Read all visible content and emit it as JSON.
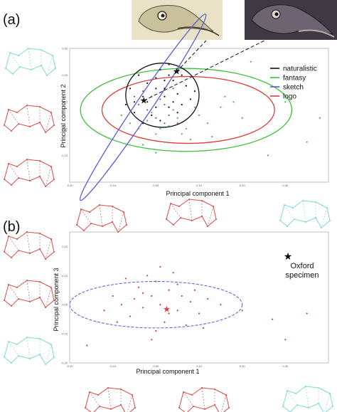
{
  "panels": {
    "a_label": "(a)",
    "b_label": "(b)"
  },
  "colors": {
    "naturalistic": "#111111",
    "fantasy": "#3cbf3c",
    "sketch": "#5a5ad6",
    "logo": "#e03a3a",
    "cyan_outline": "#7fd9cf",
    "red_outline": "#d94a4a",
    "star_b": "#e03a3a"
  },
  "icons": [
    "dodo-engraving-image",
    "dodo-painting-image",
    "skull-outline-shape"
  ],
  "chart_data": [
    {
      "type": "scatter",
      "title": "",
      "xlabel": "Principal component 1",
      "ylabel": "Principal component 2",
      "xlim": [
        -0.2,
        0.4
      ],
      "ylim": [
        -0.2,
        0.3
      ],
      "x_ticks": [
        "-0.20",
        "-0.10",
        "0.00",
        "0.10",
        "0.20",
        "0.30"
      ],
      "y_ticks": [
        "0.30",
        "0.20",
        "0.10",
        "0.00",
        "-0.10"
      ],
      "legend_position": "top-right",
      "legend": [
        "naturalistic",
        "fantasy",
        "sketch",
        "logo"
      ],
      "series": [
        {
          "name": "naturalistic",
          "marker": "dot",
          "points": [
            [
              -0.05,
              0.1
            ],
            [
              -0.03,
              0.12
            ],
            [
              0.0,
              0.15
            ],
            [
              0.02,
              0.18
            ],
            [
              0.03,
              0.08
            ],
            [
              -0.01,
              0.05
            ],
            [
              0.05,
              0.13
            ],
            [
              0.06,
              0.2
            ],
            [
              -0.06,
              0.15
            ],
            [
              0.01,
              0.22
            ],
            [
              0.04,
              0.1
            ],
            [
              -0.02,
              0.17
            ],
            [
              0.07,
              0.16
            ],
            [
              0.02,
              0.12
            ],
            [
              -0.04,
              0.2
            ],
            [
              0.03,
              0.24
            ],
            [
              0.0,
              0.08
            ],
            [
              0.05,
              0.06
            ],
            [
              -0.07,
              0.09
            ],
            [
              0.08,
              0.11
            ],
            [
              0.01,
              0.03
            ],
            [
              -0.03,
              0.02
            ],
            [
              0.04,
              0.18
            ],
            [
              -0.02,
              0.1
            ],
            [
              0.06,
              0.09
            ],
            [
              0.02,
              0.15
            ],
            [
              -0.05,
              0.06
            ],
            [
              0.09,
              0.14
            ],
            [
              0.0,
              0.19
            ],
            [
              0.03,
              0.2
            ]
          ]
        },
        {
          "name": "fantasy",
          "marker": "dot",
          "points": [
            [
              -0.04,
              0.0
            ],
            [
              -0.02,
              0.03
            ],
            [
              0.0,
              -0.02
            ],
            [
              0.03,
              0.01
            ],
            [
              0.05,
              0.04
            ],
            [
              -0.06,
              0.02
            ],
            [
              0.02,
              -0.05
            ],
            [
              0.07,
              0.0
            ],
            [
              -0.01,
              0.06
            ],
            [
              0.1,
              0.05
            ],
            [
              0.12,
              0.02
            ],
            [
              0.15,
              0.08
            ],
            [
              0.18,
              0.1
            ],
            [
              0.2,
              0.04
            ],
            [
              0.08,
              -0.04
            ],
            [
              -0.08,
              0.05
            ],
            [
              0.04,
              0.07
            ],
            [
              0.01,
              0.0
            ],
            [
              0.06,
              -0.02
            ],
            [
              0.13,
              -0.03
            ],
            [
              0.25,
              0.13
            ],
            [
              0.22,
              0.25
            ],
            [
              0.3,
              0.1
            ],
            [
              0.38,
              0.04
            ],
            [
              0.26,
              -0.1
            ],
            [
              0.35,
              -0.05
            ],
            [
              -0.03,
              -0.06
            ],
            [
              0.0,
              -0.09
            ],
            [
              0.09,
              0.08
            ],
            [
              0.16,
              0.12
            ]
          ]
        },
        {
          "name": "sketch",
          "marker": "dot",
          "points": [
            [
              -0.04,
              0.09
            ],
            [
              -0.02,
              0.07
            ],
            [
              0.01,
              0.11
            ],
            [
              0.03,
              0.05
            ],
            [
              -0.05,
              0.12
            ],
            [
              0.02,
              0.02
            ]
          ]
        },
        {
          "name": "logo",
          "marker": "dot",
          "points": [
            [
              0.0,
              0.04
            ],
            [
              0.02,
              0.09
            ],
            [
              -0.03,
              0.14
            ],
            [
              0.05,
              0.02
            ],
            [
              -0.01,
              0.12
            ],
            [
              0.04,
              0.15
            ]
          ]
        },
        {
          "name": "",
          "marker": "star",
          "points": [
            [
              -0.028,
              0.105
            ],
            [
              0.048,
              0.213
            ]
          ]
        }
      ],
      "ellipses": [
        {
          "series": "fantasy",
          "cx": 0.07,
          "cy": 0.07,
          "rx": 0.245,
          "ry": 0.155,
          "rot": 0
        },
        {
          "series": "logo",
          "cx": 0.075,
          "cy": 0.07,
          "rx": 0.2,
          "ry": 0.125,
          "rot": 0
        },
        {
          "series": "naturalistic",
          "cx": 0.015,
          "cy": 0.125,
          "rx": 0.085,
          "ry": 0.12,
          "rot": 0
        },
        {
          "series": "sketch",
          "cx": -0.03,
          "cy": 0.08,
          "rx": 0.26,
          "ry": 0.03,
          "rot": -56
        }
      ]
    },
    {
      "type": "scatter",
      "title": "",
      "xlabel": "Principal component 1",
      "ylabel": "Principal component 3",
      "xlim": [
        -0.2,
        0.4
      ],
      "ylim": [
        -0.2,
        0.25
      ],
      "x_ticks": [
        "-0.20",
        "-0.10",
        "0.00",
        "0.10",
        "0.20",
        "0.30"
      ],
      "y_ticks": [
        "0.20",
        "0.10",
        "0.00",
        "-0.10",
        "-0.20"
      ],
      "annotation": {
        "line1": "Oxford",
        "line2": "specimen"
      },
      "series": [
        {
          "name": "",
          "marker": "dot",
          "points": [
            [
              -0.05,
              0.02
            ],
            [
              -0.03,
              -0.01
            ],
            [
              -0.01,
              0.03
            ],
            [
              0.01,
              0.0
            ],
            [
              0.03,
              0.05
            ],
            [
              0.05,
              -0.02
            ],
            [
              -0.06,
              -0.04
            ],
            [
              0.0,
              0.08
            ],
            [
              0.02,
              -0.06
            ],
            [
              -0.04,
              0.06
            ],
            [
              0.06,
              0.03
            ],
            [
              0.08,
              0.01
            ],
            [
              -0.08,
              0.0
            ],
            [
              -0.1,
              0.03
            ],
            [
              0.1,
              -0.03
            ],
            [
              0.12,
              0.02
            ],
            [
              -0.02,
              0.1
            ],
            [
              0.04,
              0.11
            ],
            [
              -0.07,
              0.09
            ],
            [
              0.07,
              -0.07
            ],
            [
              -0.09,
              -0.06
            ],
            [
              0.0,
              -0.09
            ],
            [
              0.03,
              -0.03
            ],
            [
              -0.03,
              0.04
            ],
            [
              0.05,
              0.07
            ],
            [
              0.09,
              0.05
            ],
            [
              -0.12,
              -0.02
            ],
            [
              0.15,
              0.0
            ],
            [
              0.2,
              -0.02
            ],
            [
              0.27,
              -0.05
            ],
            [
              0.35,
              -0.03
            ],
            [
              0.3,
              -0.12
            ],
            [
              -0.16,
              -0.14
            ],
            [
              -0.01,
              -0.12
            ],
            [
              0.01,
              0.13
            ],
            [
              0.11,
              -0.08
            ]
          ]
        },
        {
          "name": "Oxford specimen",
          "marker": "star",
          "points": [
            [
              0.025,
              -0.015
            ]
          ]
        }
      ],
      "ellipses": [
        {
          "series": "",
          "cx": 0.0,
          "cy": 0.0,
          "rx": 0.2,
          "ry": 0.08,
          "rot": 0
        }
      ]
    }
  ]
}
